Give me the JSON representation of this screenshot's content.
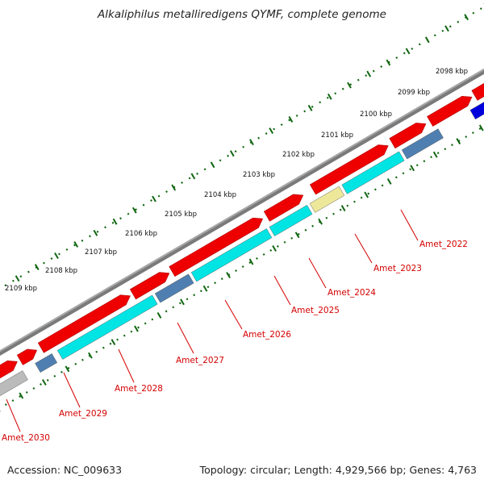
{
  "title": "Alkaliphilus metalliredigens QYMF, complete genome",
  "footer": {
    "accession": "Accession: NC_009633",
    "summary": "Topology: circular; Length: 4,929,566 bp; Genes: 4,763"
  },
  "colors": {
    "backbone": "#7a7a7a",
    "forward_cds": "#ee0000",
    "reverse_cds_cyan": "#00e4e4",
    "reverse_cds_steel": "#4f7fb0",
    "reverse_cds_blue": "#0000dd",
    "reverse_cds_yellow": "#ede79a",
    "reverse_cds_gray": "#bbbbbb",
    "ruler_tick": "#116611",
    "label": "#d40000"
  },
  "ruler": {
    "unit": "kbp",
    "labels": [
      "2098 kbp",
      "2099 kbp",
      "2100 kbp",
      "2101 kbp",
      "2102 kbp",
      "2103 kbp",
      "2104 kbp",
      "2105 kbp",
      "2106 kbp",
      "2107 kbp",
      "2108 kbp",
      "2109 kbp"
    ]
  },
  "genes": [
    {
      "name": "Amet_2022"
    },
    {
      "name": "Amet_2023"
    },
    {
      "name": "Amet_2024"
    },
    {
      "name": "Amet_2025"
    },
    {
      "name": "Amet_2026"
    },
    {
      "name": "Amet_2027"
    },
    {
      "name": "Amet_2028"
    },
    {
      "name": "Amet_2029"
    },
    {
      "name": "Amet_2030"
    }
  ]
}
